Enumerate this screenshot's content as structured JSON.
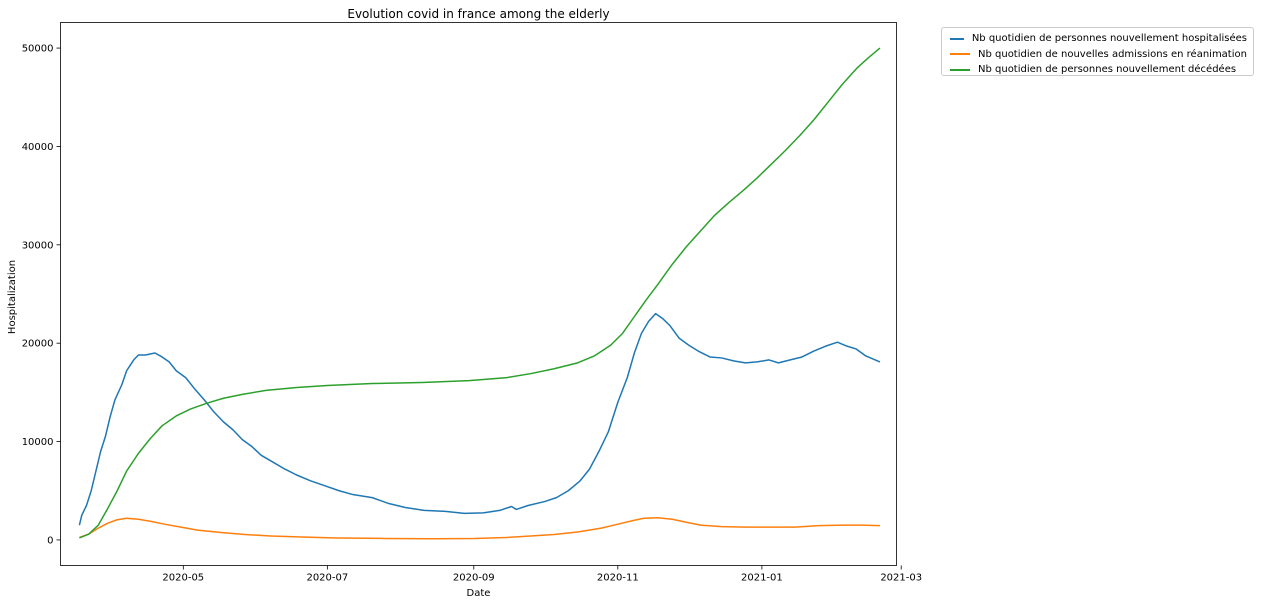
{
  "chart_data": {
    "type": "line",
    "title": "Evolution covid in france among the elderly",
    "xlabel": "Date",
    "ylabel": "Hospitalization",
    "x_range": [
      "2020-03-10",
      "2021-02-27"
    ],
    "ylim": [
      -2600,
      52600
    ],
    "x_ticks": [
      "2020-05",
      "2020-07",
      "2020-09",
      "2020-11",
      "2021-01",
      "2021-03"
    ],
    "y_ticks": [
      0,
      10000,
      20000,
      30000,
      40000,
      50000
    ],
    "grid": false,
    "legend_position": "outside top-right",
    "series": [
      {
        "name": "Nb quotidien de personnes nouvellement hospitalisées",
        "color": "#1f77b4",
        "points": [
          [
            "2020-03-18",
            1500
          ],
          [
            "2020-03-19",
            2500
          ],
          [
            "2020-03-21",
            3500
          ],
          [
            "2020-03-23",
            5000
          ],
          [
            "2020-03-25",
            7000
          ],
          [
            "2020-03-27",
            9000
          ],
          [
            "2020-03-29",
            10500
          ],
          [
            "2020-03-31",
            12500
          ],
          [
            "2020-04-02",
            14200
          ],
          [
            "2020-04-05",
            15800
          ],
          [
            "2020-04-07",
            17200
          ],
          [
            "2020-04-10",
            18300
          ],
          [
            "2020-04-12",
            18800
          ],
          [
            "2020-04-15",
            18800
          ],
          [
            "2020-04-19",
            19000
          ],
          [
            "2020-04-22",
            18600
          ],
          [
            "2020-04-25",
            18100
          ],
          [
            "2020-04-28",
            17200
          ],
          [
            "2020-05-02",
            16500
          ],
          [
            "2020-05-06",
            15300
          ],
          [
            "2020-05-10",
            14200
          ],
          [
            "2020-05-14",
            13000
          ],
          [
            "2020-05-18",
            12000
          ],
          [
            "2020-05-22",
            11200
          ],
          [
            "2020-05-26",
            10200
          ],
          [
            "2020-05-30",
            9500
          ],
          [
            "2020-06-03",
            8600
          ],
          [
            "2020-06-08",
            7900
          ],
          [
            "2020-06-13",
            7200
          ],
          [
            "2020-06-18",
            6600
          ],
          [
            "2020-06-24",
            6000
          ],
          [
            "2020-06-30",
            5500
          ],
          [
            "2020-07-06",
            5000
          ],
          [
            "2020-07-12",
            4600
          ],
          [
            "2020-07-20",
            4300
          ],
          [
            "2020-07-27",
            3700
          ],
          [
            "2020-08-03",
            3300
          ],
          [
            "2020-08-11",
            3000
          ],
          [
            "2020-08-20",
            2900
          ],
          [
            "2020-08-28",
            2700
          ],
          [
            "2020-09-05",
            2750
          ],
          [
            "2020-09-12",
            3000
          ],
          [
            "2020-09-17",
            3400
          ],
          [
            "2020-09-19",
            3100
          ],
          [
            "2020-09-24",
            3500
          ],
          [
            "2020-10-01",
            3900
          ],
          [
            "2020-10-06",
            4300
          ],
          [
            "2020-10-11",
            5000
          ],
          [
            "2020-10-16",
            6000
          ],
          [
            "2020-10-20",
            7200
          ],
          [
            "2020-10-24",
            9000
          ],
          [
            "2020-10-28",
            11000
          ],
          [
            "2020-11-01",
            14000
          ],
          [
            "2020-11-05",
            16500
          ],
          [
            "2020-11-08",
            19000
          ],
          [
            "2020-11-11",
            21000
          ],
          [
            "2020-11-14",
            22200
          ],
          [
            "2020-11-17",
            23000
          ],
          [
            "2020-11-20",
            22500
          ],
          [
            "2020-11-23",
            21800
          ],
          [
            "2020-11-27",
            20500
          ],
          [
            "2020-12-01",
            19800
          ],
          [
            "2020-12-05",
            19200
          ],
          [
            "2020-12-10",
            18600
          ],
          [
            "2020-12-15",
            18500
          ],
          [
            "2020-12-20",
            18200
          ],
          [
            "2020-12-25",
            18000
          ],
          [
            "2020-12-30",
            18100
          ],
          [
            "2021-01-04",
            18300
          ],
          [
            "2021-01-08",
            18000
          ],
          [
            "2021-01-13",
            18300
          ],
          [
            "2021-01-18",
            18600
          ],
          [
            "2021-01-23",
            19200
          ],
          [
            "2021-01-28",
            19700
          ],
          [
            "2021-02-02",
            20100
          ],
          [
            "2021-02-06",
            19700
          ],
          [
            "2021-02-10",
            19400
          ],
          [
            "2021-02-14",
            18700
          ],
          [
            "2021-02-18",
            18300
          ],
          [
            "2021-02-20",
            18100
          ]
        ]
      },
      {
        "name": "Nb quotidien de nouvelles admissions en réanimation",
        "color": "#ff7f0e",
        "points": [
          [
            "2020-03-18",
            250
          ],
          [
            "2020-03-22",
            600
          ],
          [
            "2020-03-26",
            1200
          ],
          [
            "2020-03-30",
            1700
          ],
          [
            "2020-04-03",
            2050
          ],
          [
            "2020-04-07",
            2200
          ],
          [
            "2020-04-12",
            2100
          ],
          [
            "2020-04-17",
            1900
          ],
          [
            "2020-04-23",
            1600
          ],
          [
            "2020-04-30",
            1300
          ],
          [
            "2020-05-07",
            1000
          ],
          [
            "2020-05-17",
            750
          ],
          [
            "2020-05-27",
            550
          ],
          [
            "2020-06-07",
            400
          ],
          [
            "2020-06-20",
            300
          ],
          [
            "2020-07-05",
            200
          ],
          [
            "2020-07-25",
            150
          ],
          [
            "2020-08-15",
            120
          ],
          [
            "2020-09-01",
            150
          ],
          [
            "2020-09-15",
            250
          ],
          [
            "2020-09-25",
            400
          ],
          [
            "2020-10-05",
            550
          ],
          [
            "2020-10-15",
            800
          ],
          [
            "2020-10-25",
            1200
          ],
          [
            "2020-11-01",
            1600
          ],
          [
            "2020-11-08",
            2000
          ],
          [
            "2020-11-12",
            2200
          ],
          [
            "2020-11-18",
            2250
          ],
          [
            "2020-11-24",
            2100
          ],
          [
            "2020-11-30",
            1800
          ],
          [
            "2020-12-06",
            1500
          ],
          [
            "2020-12-15",
            1350
          ],
          [
            "2020-12-25",
            1300
          ],
          [
            "2021-01-05",
            1300
          ],
          [
            "2021-01-15",
            1300
          ],
          [
            "2021-01-25",
            1450
          ],
          [
            "2021-02-05",
            1500
          ],
          [
            "2021-02-12",
            1500
          ],
          [
            "2021-02-20",
            1450
          ]
        ]
      },
      {
        "name": "Nb quotidien de personnes nouvellement décédées",
        "color": "#2ca02c",
        "points": [
          [
            "2020-03-18",
            200
          ],
          [
            "2020-03-22",
            600
          ],
          [
            "2020-03-26",
            1500
          ],
          [
            "2020-03-30",
            3200
          ],
          [
            "2020-04-03",
            5000
          ],
          [
            "2020-04-07",
            7000
          ],
          [
            "2020-04-12",
            8800
          ],
          [
            "2020-04-17",
            10300
          ],
          [
            "2020-04-22",
            11600
          ],
          [
            "2020-04-28",
            12600
          ],
          [
            "2020-05-04",
            13300
          ],
          [
            "2020-05-11",
            13900
          ],
          [
            "2020-05-18",
            14400
          ],
          [
            "2020-05-26",
            14800
          ],
          [
            "2020-06-05",
            15200
          ],
          [
            "2020-06-18",
            15500
          ],
          [
            "2020-07-01",
            15700
          ],
          [
            "2020-07-20",
            15900
          ],
          [
            "2020-08-10",
            16000
          ],
          [
            "2020-08-30",
            16200
          ],
          [
            "2020-09-15",
            16500
          ],
          [
            "2020-09-25",
            16900
          ],
          [
            "2020-10-05",
            17400
          ],
          [
            "2020-10-15",
            18000
          ],
          [
            "2020-10-22",
            18700
          ],
          [
            "2020-10-29",
            19800
          ],
          [
            "2020-11-03",
            21000
          ],
          [
            "2020-11-08",
            22700
          ],
          [
            "2020-11-13",
            24400
          ],
          [
            "2020-11-18",
            26000
          ],
          [
            "2020-11-24",
            28000
          ],
          [
            "2020-11-30",
            29800
          ],
          [
            "2020-12-06",
            31400
          ],
          [
            "2020-12-12",
            33000
          ],
          [
            "2020-12-18",
            34300
          ],
          [
            "2020-12-24",
            35500
          ],
          [
            "2020-12-30",
            36800
          ],
          [
            "2021-01-05",
            38200
          ],
          [
            "2021-01-11",
            39600
          ],
          [
            "2021-01-17",
            41100
          ],
          [
            "2021-01-23",
            42700
          ],
          [
            "2021-01-29",
            44500
          ],
          [
            "2021-02-04",
            46300
          ],
          [
            "2021-02-10",
            47900
          ],
          [
            "2021-02-15",
            49000
          ],
          [
            "2021-02-20",
            50000
          ]
        ]
      }
    ]
  }
}
